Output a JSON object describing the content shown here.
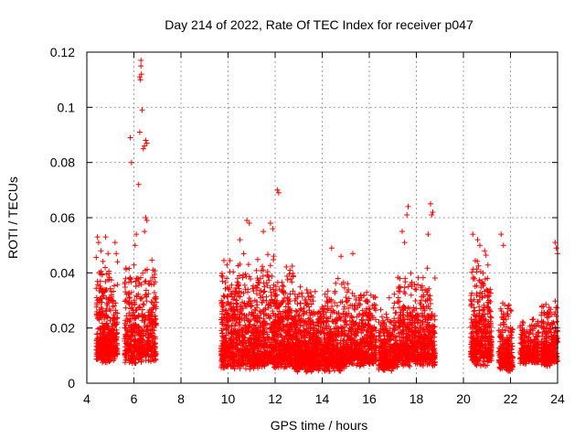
{
  "chart_data": {
    "type": "scatter",
    "title": "Day 214 of 2022, Rate Of TEC Index for receiver p047",
    "xlabel": "GPS time / hours",
    "ylabel": "ROTI / TECUs",
    "xlim": [
      4,
      24
    ],
    "ylim": [
      0,
      0.12
    ],
    "x_ticks": [
      4,
      6,
      8,
      10,
      12,
      14,
      16,
      18,
      20,
      22,
      24
    ],
    "x_tick_labels": [
      "4",
      "6",
      "8",
      "10",
      "12",
      "14",
      "16",
      "18",
      "20",
      "22",
      "24"
    ],
    "y_ticks": [
      0,
      0.02,
      0.04,
      0.06,
      0.08,
      0.1,
      0.12
    ],
    "y_tick_labels": [
      "0",
      "0.02",
      "0.04",
      "0.06",
      "0.08",
      "0.1",
      "0.12"
    ],
    "grid": true,
    "marker": "+",
    "series": [
      {
        "name": "ROTI",
        "color": "#ff0000",
        "clusters": [
          {
            "x_range": [
              4.4,
              5.0
            ],
            "y_range": [
              0.007,
              0.045
            ],
            "count": 320
          },
          {
            "x_range": [
              5.0,
              5.3
            ],
            "y_range": [
              0.008,
              0.04
            ],
            "count": 120
          },
          {
            "x_range": [
              5.6,
              6.95
            ],
            "y_range": [
              0.007,
              0.045
            ],
            "count": 520
          },
          {
            "x_range": [
              9.7,
              12.8
            ],
            "y_range": [
              0.005,
              0.045
            ],
            "count": 1400
          },
          {
            "x_range": [
              12.8,
              15.0
            ],
            "y_range": [
              0.004,
              0.035
            ],
            "count": 1100
          },
          {
            "x_range": [
              15.0,
              16.3
            ],
            "y_range": [
              0.006,
              0.035
            ],
            "count": 500
          },
          {
            "x_range": [
              16.4,
              17.2
            ],
            "y_range": [
              0.004,
              0.03
            ],
            "count": 330
          },
          {
            "x_range": [
              17.2,
              18.8
            ],
            "y_range": [
              0.006,
              0.04
            ],
            "count": 650
          },
          {
            "x_range": [
              20.3,
              21.2
            ],
            "y_range": [
              0.006,
              0.045
            ],
            "count": 420
          },
          {
            "x_range": [
              21.5,
              22.1
            ],
            "y_range": [
              0.004,
              0.03
            ],
            "count": 260
          },
          {
            "x_range": [
              22.4,
              23.2
            ],
            "y_range": [
              0.007,
              0.025
            ],
            "count": 280
          },
          {
            "x_range": [
              23.3,
              24.0
            ],
            "y_range": [
              0.006,
              0.03
            ],
            "count": 300
          }
        ],
        "outliers": [
          [
            4.45,
            0.053
          ],
          [
            4.5,
            0.051
          ],
          [
            4.6,
            0.048
          ],
          [
            4.8,
            0.053
          ],
          [
            4.9,
            0.047
          ],
          [
            5.2,
            0.051
          ],
          [
            5.25,
            0.047
          ],
          [
            5.3,
            0.044
          ],
          [
            5.85,
            0.089
          ],
          [
            5.9,
            0.08
          ],
          [
            6.05,
            0.05
          ],
          [
            6.1,
            0.054
          ],
          [
            6.2,
            0.072
          ],
          [
            6.25,
            0.091
          ],
          [
            6.25,
            0.111
          ],
          [
            6.28,
            0.11
          ],
          [
            6.3,
            0.117
          ],
          [
            6.3,
            0.115
          ],
          [
            6.32,
            0.112
          ],
          [
            6.35,
            0.099
          ],
          [
            6.4,
            0.085
          ],
          [
            6.45,
            0.086
          ],
          [
            6.5,
            0.088
          ],
          [
            6.55,
            0.087
          ],
          [
            6.5,
            0.06
          ],
          [
            6.55,
            0.059
          ],
          [
            6.45,
            0.055
          ],
          [
            10.8,
            0.059
          ],
          [
            10.9,
            0.058
          ],
          [
            11.8,
            0.058
          ],
          [
            11.9,
            0.056
          ],
          [
            12.1,
            0.07
          ],
          [
            12.15,
            0.069
          ],
          [
            11.5,
            0.055
          ],
          [
            10.5,
            0.052
          ],
          [
            14.4,
            0.049
          ],
          [
            14.8,
            0.046
          ],
          [
            15.3,
            0.047
          ],
          [
            17.4,
            0.055
          ],
          [
            17.5,
            0.051
          ],
          [
            17.6,
            0.061
          ],
          [
            17.65,
            0.064
          ],
          [
            18.6,
            0.065
          ],
          [
            18.65,
            0.061
          ],
          [
            18.7,
            0.062
          ],
          [
            18.5,
            0.054
          ],
          [
            20.4,
            0.054
          ],
          [
            20.6,
            0.052
          ],
          [
            20.7,
            0.05
          ],
          [
            20.9,
            0.048
          ],
          [
            21.6,
            0.054
          ],
          [
            21.7,
            0.05
          ],
          [
            23.9,
            0.051
          ],
          [
            23.95,
            0.049
          ],
          [
            24.0,
            0.047
          ]
        ]
      }
    ]
  }
}
